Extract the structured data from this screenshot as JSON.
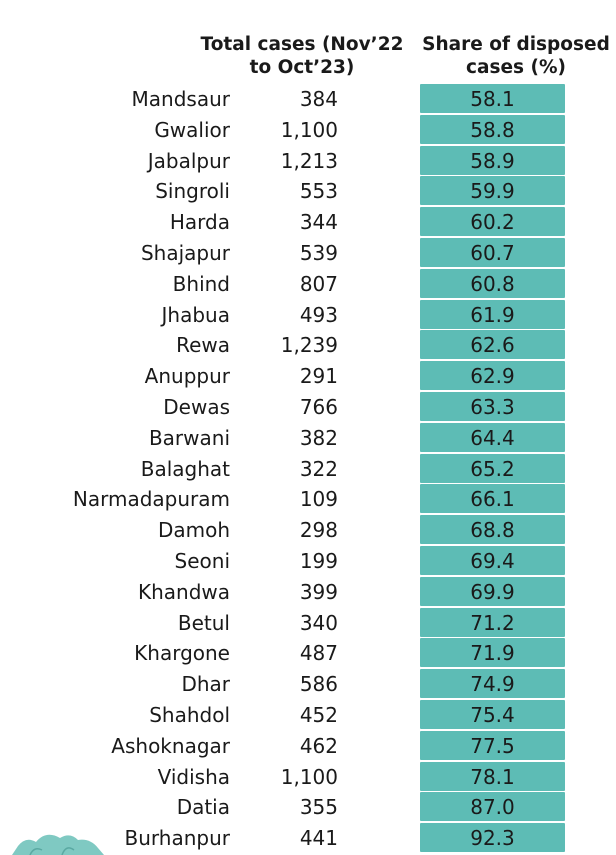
{
  "header": {
    "total_line1": "Total cases (Nov’22",
    "total_line2": "to Oct’23)",
    "share_line1": "Share of disposed",
    "share_line2": "cases (%)"
  },
  "colors": {
    "cell": "#5dbcb5",
    "text": "#1a1a1a"
  },
  "chart_data": {
    "type": "table",
    "columns": [
      "",
      "Total cases (Nov’22 to Oct’23)",
      "Share of disposed cases (%)"
    ],
    "rows": [
      {
        "district": "Mandsaur",
        "cases": "384",
        "share": "58.1"
      },
      {
        "district": "Gwalior",
        "cases": "1,100",
        "share": "58.8"
      },
      {
        "district": "Jabalpur",
        "cases": "1,213",
        "share": "58.9"
      },
      {
        "district": "Singroli",
        "cases": "553",
        "share": "59.9"
      },
      {
        "district": "Harda",
        "cases": "344",
        "share": "60.2"
      },
      {
        "district": "Shajapur",
        "cases": "539",
        "share": "60.7"
      },
      {
        "district": "Bhind",
        "cases": "807",
        "share": "60.8"
      },
      {
        "district": "Jhabua",
        "cases": "493",
        "share": "61.9"
      },
      {
        "district": "Rewa",
        "cases": "1,239",
        "share": "62.6"
      },
      {
        "district": "Anuppur",
        "cases": "291",
        "share": "62.9"
      },
      {
        "district": "Dewas",
        "cases": "766",
        "share": "63.3"
      },
      {
        "district": "Barwani",
        "cases": "382",
        "share": "64.4"
      },
      {
        "district": "Balaghat",
        "cases": "322",
        "share": "65.2"
      },
      {
        "district": "Narmadapuram",
        "cases": "109",
        "share": "66.1"
      },
      {
        "district": "Damoh",
        "cases": "298",
        "share": "68.8"
      },
      {
        "district": "Seoni",
        "cases": "199",
        "share": "69.4"
      },
      {
        "district": "Khandwa",
        "cases": "399",
        "share": "69.9"
      },
      {
        "district": "Betul",
        "cases": "340",
        "share": "71.2"
      },
      {
        "district": "Khargone",
        "cases": "487",
        "share": "71.9"
      },
      {
        "district": "Dhar",
        "cases": "586",
        "share": "74.9"
      },
      {
        "district": "Shahdol",
        "cases": "452",
        "share": "75.4"
      },
      {
        "district": "Ashoknagar",
        "cases": "462",
        "share": "77.5"
      },
      {
        "district": "Vidisha",
        "cases": "1,100",
        "share": "78.1"
      },
      {
        "district": "Datia",
        "cases": "355",
        "share": "87.0"
      },
      {
        "district": "Burhanpur",
        "cases": "441",
        "share": "92.3"
      }
    ]
  }
}
